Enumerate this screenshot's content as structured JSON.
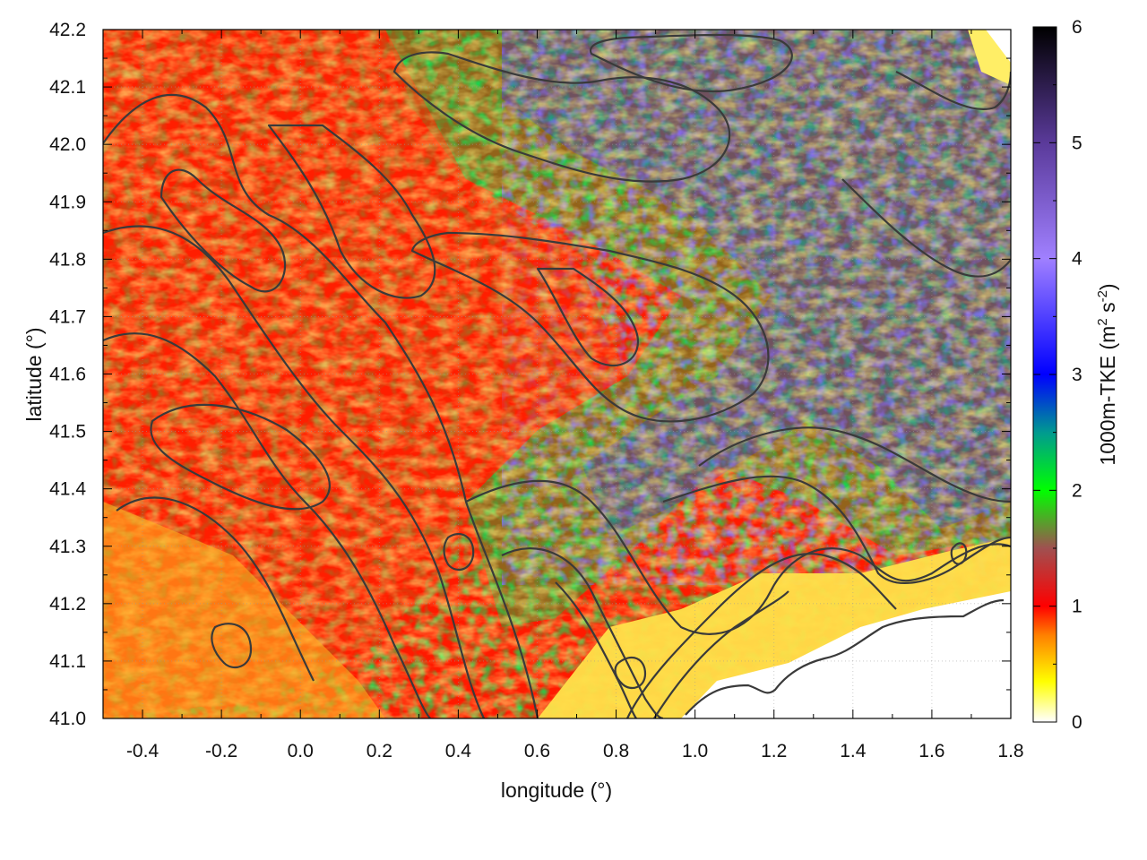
{
  "chart_data": {
    "type": "heatmap",
    "title": "",
    "xlabel": "longitude (°)",
    "ylabel": "latitude (°)",
    "xlim": [
      -0.5,
      1.8
    ],
    "ylim": [
      41.0,
      42.2
    ],
    "x_ticks": [
      "-0.4",
      "-0.2",
      "0.0",
      "0.2",
      "0.4",
      "0.6",
      "0.8",
      "1.0",
      "1.2",
      "1.4",
      "1.6",
      "1.8"
    ],
    "y_ticks": [
      "41.0",
      "41.1",
      "41.2",
      "41.3",
      "41.4",
      "41.5",
      "41.6",
      "41.7",
      "41.8",
      "41.9",
      "42.0",
      "42.1",
      "42.2"
    ],
    "colorbar": {
      "label_main": "1000m-TKE (m",
      "label_sup1": "2",
      "label_mid": " s",
      "label_sup2": "-2",
      "label_end": ")",
      "range": [
        0,
        6
      ],
      "ticks": [
        "0",
        "1",
        "2",
        "3",
        "4",
        "5",
        "6"
      ],
      "stops": [
        {
          "value": 0.0,
          "color": "#ffffff"
        },
        {
          "value": 0.35,
          "color": "#ffff00"
        },
        {
          "value": 0.75,
          "color": "#ff8000"
        },
        {
          "value": 1.0,
          "color": "#ff0000"
        },
        {
          "value": 1.5,
          "color": "#a05050"
        },
        {
          "value": 2.0,
          "color": "#00ff00"
        },
        {
          "value": 2.5,
          "color": "#009a90"
        },
        {
          "value": 3.0,
          "color": "#0000ff"
        },
        {
          "value": 4.0,
          "color": "#a080ff"
        },
        {
          "value": 5.0,
          "color": "#5a3a9a"
        },
        {
          "value": 6.0,
          "color": "#000000"
        }
      ]
    },
    "grid": true,
    "contours": "terrain elevation (unlabeled, dark gray)"
  }
}
